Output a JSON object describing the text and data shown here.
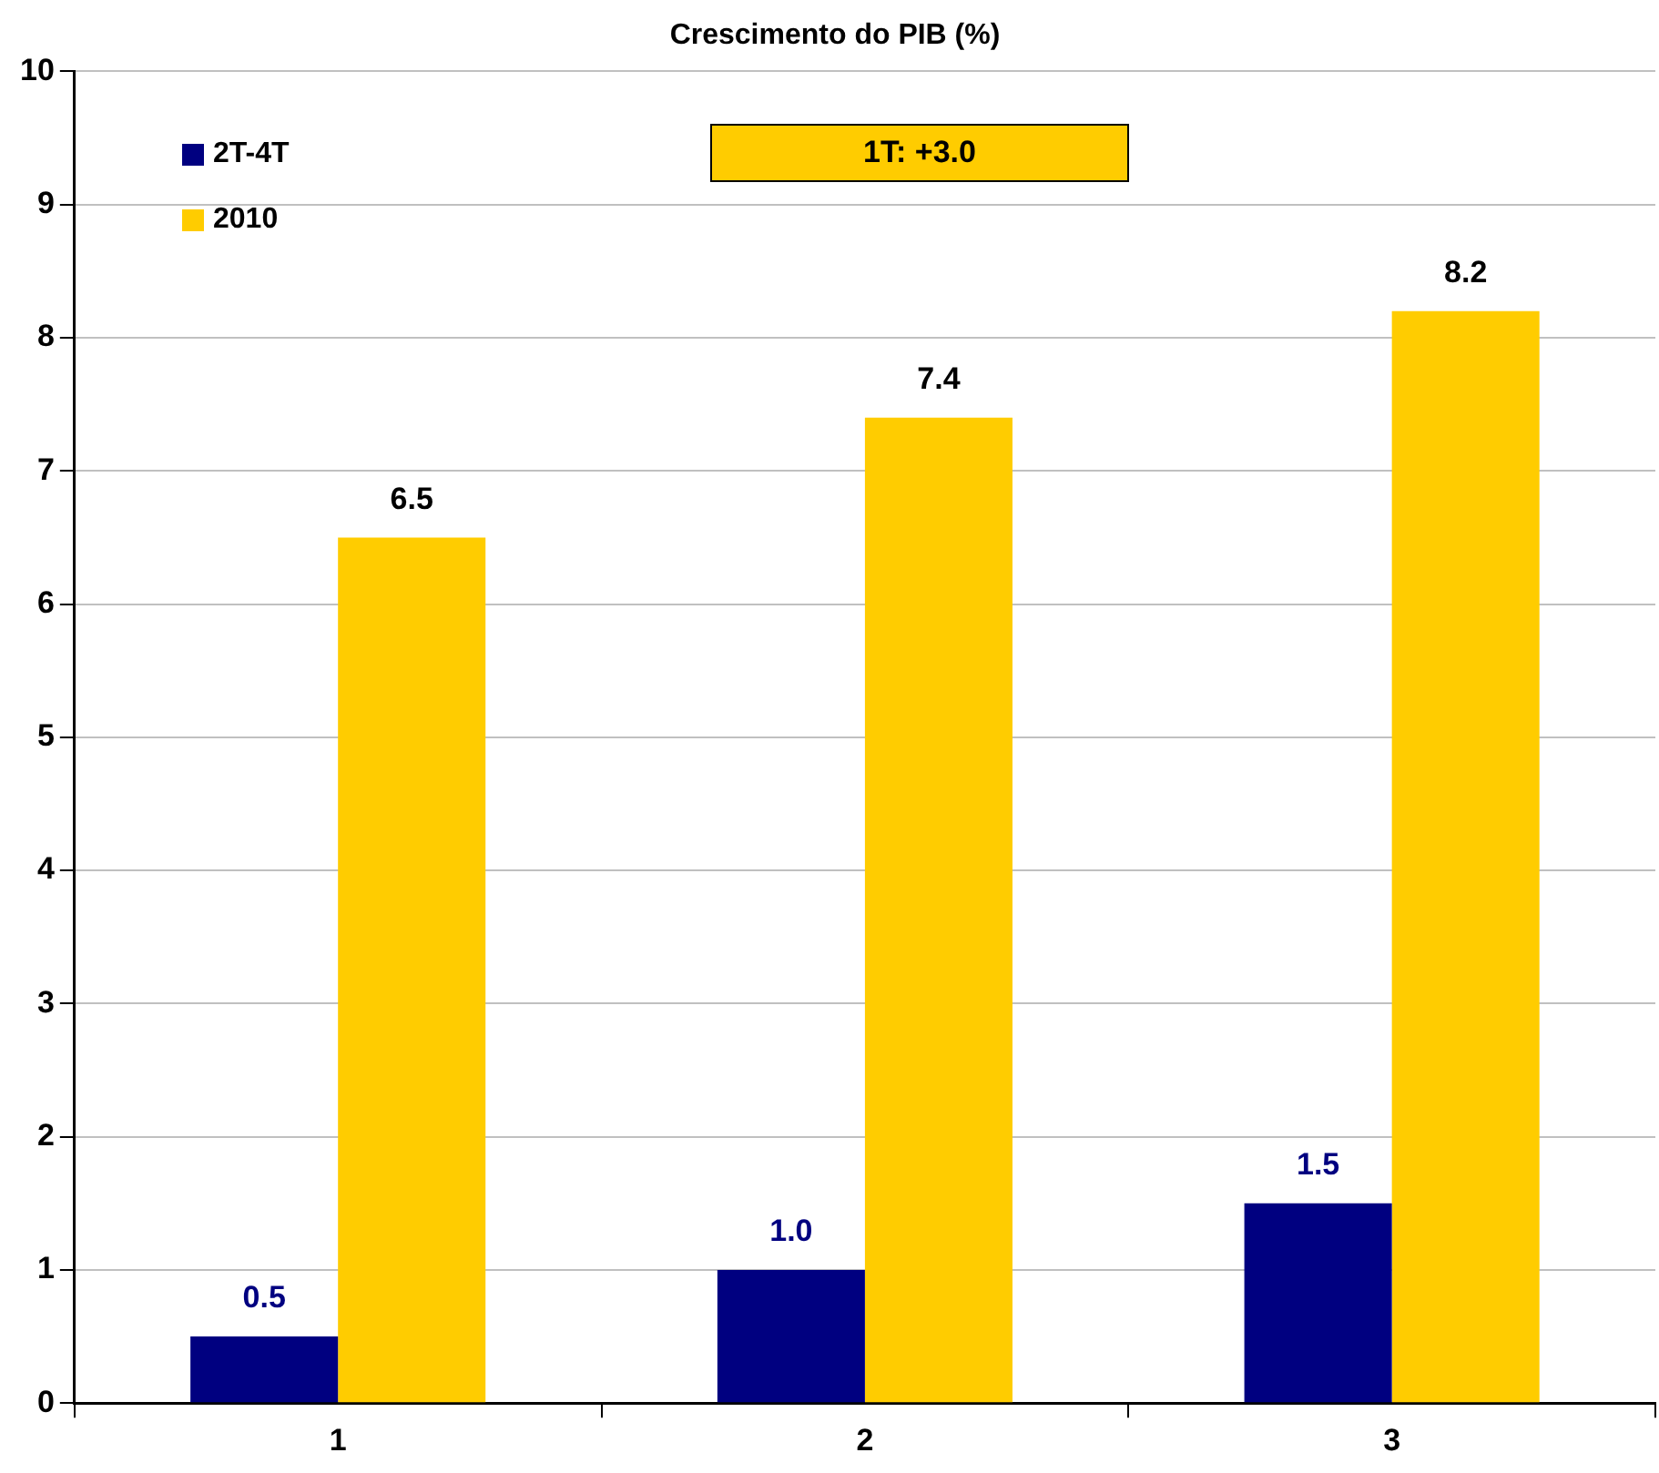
{
  "chart_data": {
    "type": "bar",
    "title": "Crescimento do PIB (%)",
    "categories": [
      "1",
      "2",
      "3"
    ],
    "series": [
      {
        "name": "2T-4T",
        "color": "#000080",
        "values": [
          0.5,
          1.0,
          1.5
        ],
        "value_labels": [
          "0.5",
          "1.0",
          "1.5"
        ]
      },
      {
        "name": "2010",
        "color": "#ffcc00",
        "values": [
          6.5,
          7.4,
          8.2
        ],
        "value_labels": [
          "6.5",
          "7.4",
          "8.2"
        ]
      }
    ],
    "ylim": [
      0,
      10
    ],
    "yticks": [
      0,
      1,
      2,
      3,
      4,
      5,
      6,
      7,
      8,
      9,
      10
    ],
    "grid": "y",
    "legend": "top left",
    "annotations": [
      "1T: +3.0"
    ]
  }
}
